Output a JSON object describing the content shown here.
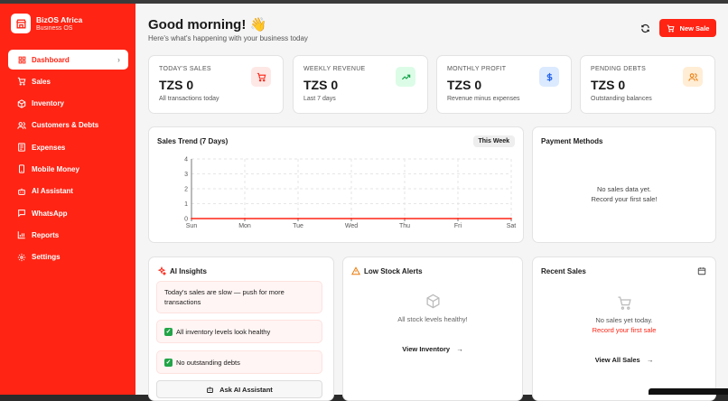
{
  "brand": {
    "name": "BizOS Africa",
    "subtitle": "Business OS",
    "accent": "#ff2414"
  },
  "sidebar": {
    "items": [
      {
        "label": "Dashboard",
        "icon": "grid-icon",
        "active": true
      },
      {
        "label": "Sales",
        "icon": "cart-icon"
      },
      {
        "label": "Inventory",
        "icon": "box-icon"
      },
      {
        "label": "Customers & Debts",
        "icon": "users-icon"
      },
      {
        "label": "Expenses",
        "icon": "receipt-icon"
      },
      {
        "label": "Mobile Money",
        "icon": "phone-icon"
      },
      {
        "label": "AI Assistant",
        "icon": "bot-icon"
      },
      {
        "label": "WhatsApp",
        "icon": "chat-icon"
      },
      {
        "label": "Reports",
        "icon": "bar-chart-icon"
      },
      {
        "label": "Settings",
        "icon": "gear-icon"
      }
    ]
  },
  "header": {
    "greeting": "Good morning! 👋",
    "subtitle": "Here's what's happening with your business today",
    "new_sale_label": "New Sale"
  },
  "stats": [
    {
      "label": "TODAY'S SALES",
      "value": "TZS 0",
      "sub": "All transactions today",
      "icon": "cart-icon",
      "icon_color": "#ff2414",
      "icon_bg": "#fde8e6"
    },
    {
      "label": "WEEKLY REVENUE",
      "value": "TZS 0",
      "sub": "Last 7 days",
      "icon": "trending-up-icon",
      "icon_color": "#16a34a",
      "icon_bg": "#dcfce7"
    },
    {
      "label": "MONTHLY PROFIT",
      "value": "TZS 0",
      "sub": "Revenue minus expenses",
      "icon": "dollar-icon",
      "icon_color": "#2563eb",
      "icon_bg": "#dbeafe"
    },
    {
      "label": "PENDING DEBTS",
      "value": "TZS 0",
      "sub": "Outstanding balances",
      "icon": "users-icon",
      "icon_color": "#ea7c0c",
      "icon_bg": "#ffedd5"
    }
  ],
  "sales_trend": {
    "title": "Sales Trend (7 Days)",
    "badge": "This Week"
  },
  "chart_data": {
    "type": "line",
    "categories": [
      "Sun",
      "Mon",
      "Tue",
      "Wed",
      "Thu",
      "Fri",
      "Sat"
    ],
    "series": [
      {
        "values": [
          0,
          0,
          0,
          0,
          0,
          0,
          0
        ],
        "color": "#ff2414"
      }
    ],
    "yticks": [
      "0",
      "1",
      "2",
      "3",
      "4"
    ],
    "ylim": [
      0,
      4
    ],
    "grid": true
  },
  "payment_methods": {
    "title": "Payment Methods",
    "empty_line1": "No sales data yet.",
    "empty_line2": "Record your first sale!"
  },
  "ai_insights": {
    "title": "AI Insights",
    "items": [
      "Today's sales are slow — push for more transactions",
      "All inventory levels look healthy",
      "No outstanding debts"
    ],
    "button_label": "Ask AI Assistant"
  },
  "low_stock": {
    "title": "Low Stock Alerts",
    "message": "All stock levels healthy!",
    "link_label": "View Inventory"
  },
  "recent_sales": {
    "title": "Recent Sales",
    "message": "No sales yet today.",
    "link_text": "Record your first sale",
    "view_all_label": "View All Sales"
  }
}
